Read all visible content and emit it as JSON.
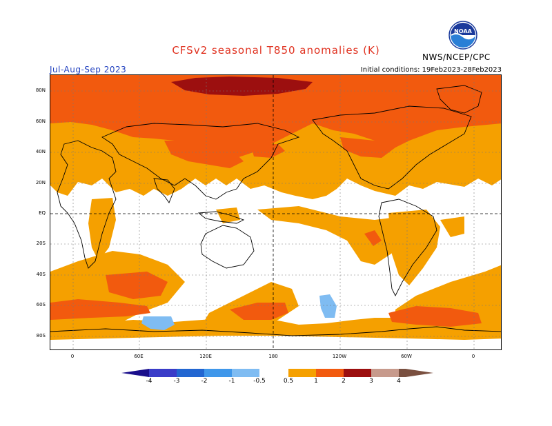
{
  "header": {
    "title": "CFSv2 seasonal T850 anomalies (K)",
    "season": "Jul-Aug-Sep 2023",
    "initial_conditions": "Initial conditions: 19Feb2023-28Feb2023",
    "agency": "NWS/NCEP/CPC",
    "logo_text": "NOAA"
  },
  "map": {
    "lat_labels": [
      "80N",
      "60N",
      "40N",
      "20N",
      "EQ",
      "20S",
      "40S",
      "60S",
      "80S"
    ],
    "lon_labels": [
      "0",
      "60E",
      "120E",
      "180",
      "120W",
      "60W",
      "0"
    ]
  },
  "colorbar": {
    "labels": [
      "-4",
      "-3",
      "-2",
      "-1",
      "-0.5",
      "0.5",
      "1",
      "2",
      "3",
      "4"
    ],
    "colors": {
      "lt_-4": "#1a0f8c",
      "-4_-3": "#3a3cc8",
      "-3_-2": "#2266d1",
      "-2_-1": "#3f97ea",
      "-1_-0.5": "#7fbcf2",
      "neutral": "#ffffff",
      "0.5_1": "#f5a000",
      "1_2": "#f25a0e",
      "2_3": "#e0300e",
      "3_4": "#9c0f0f",
      "4_5": "#c79a8c",
      "gt_5": "#7a5040"
    }
  }
}
